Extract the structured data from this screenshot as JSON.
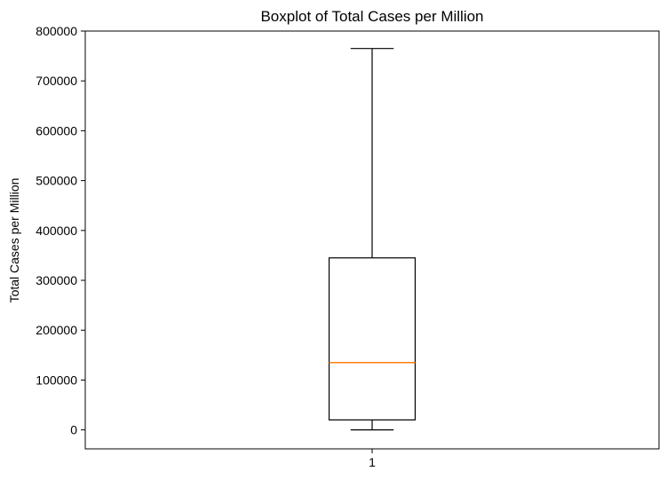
{
  "chart_data": {
    "type": "box",
    "title": "Boxplot of Total Cases per Million",
    "xlabel": "",
    "ylabel": "Total Cases per Million",
    "categories": [
      "1"
    ],
    "boxes": [
      {
        "category": "1",
        "whisker_low": 0,
        "q1": 20000,
        "median": 135000,
        "q3": 345000,
        "whisker_high": 765000
      }
    ],
    "ylim": [
      -38000,
      800000
    ],
    "yticks": [
      0,
      100000,
      200000,
      300000,
      400000,
      500000,
      600000,
      700000,
      800000
    ],
    "ytick_labels": [
      "0",
      "100000",
      "200000",
      "300000",
      "400000",
      "500000",
      "600000",
      "700000",
      "800000"
    ],
    "grid": false,
    "colors": {
      "box": "#000000",
      "median": "#ff7f0e",
      "whisker": "#000000"
    }
  }
}
